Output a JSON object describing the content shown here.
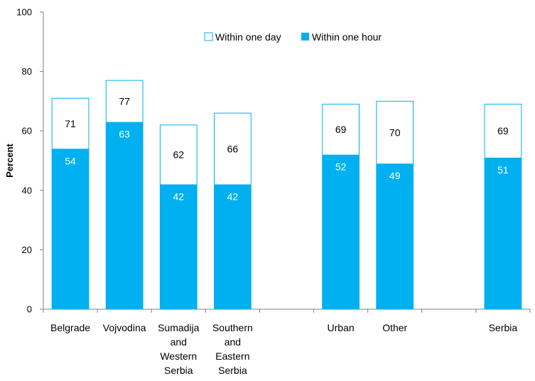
{
  "chart_data": {
    "type": "bar",
    "stacked_overlay": true,
    "ylabel": "Percent",
    "ylim": [
      0,
      100
    ],
    "yticks": [
      0,
      20,
      40,
      60,
      80,
      100
    ],
    "grid": false,
    "legend_position": "top-center",
    "categories": [
      [
        "Belgrade"
      ],
      [
        "Vojvodina"
      ],
      [
        "Sumadija",
        "and",
        "Western",
        "Serbia"
      ],
      [
        "Southern",
        "and",
        "Eastern",
        "Serbia"
      ],
      [
        ""
      ],
      [
        "Urban"
      ],
      [
        "Other"
      ],
      [
        ""
      ],
      [
        "Serbia"
      ]
    ],
    "series": [
      {
        "name": "Within one day",
        "color": "#ffffff",
        "stroke": "#00b0f0",
        "label_color": "#000000",
        "values": [
          71,
          77,
          62,
          66,
          null,
          69,
          70,
          null,
          69
        ]
      },
      {
        "name": "Within one hour",
        "color": "#00b0f0",
        "label_color": "#ffffff",
        "values": [
          54,
          63,
          42,
          42,
          null,
          52,
          49,
          null,
          51
        ]
      }
    ],
    "value_labels": {
      "Within one day": [
        "71",
        "77",
        "62",
        "66",
        "",
        "69",
        "70",
        "",
        "69"
      ],
      "Within one hour": [
        "54",
        "63",
        "42",
        "42",
        "",
        "52",
        "49",
        "",
        "51"
      ]
    }
  }
}
